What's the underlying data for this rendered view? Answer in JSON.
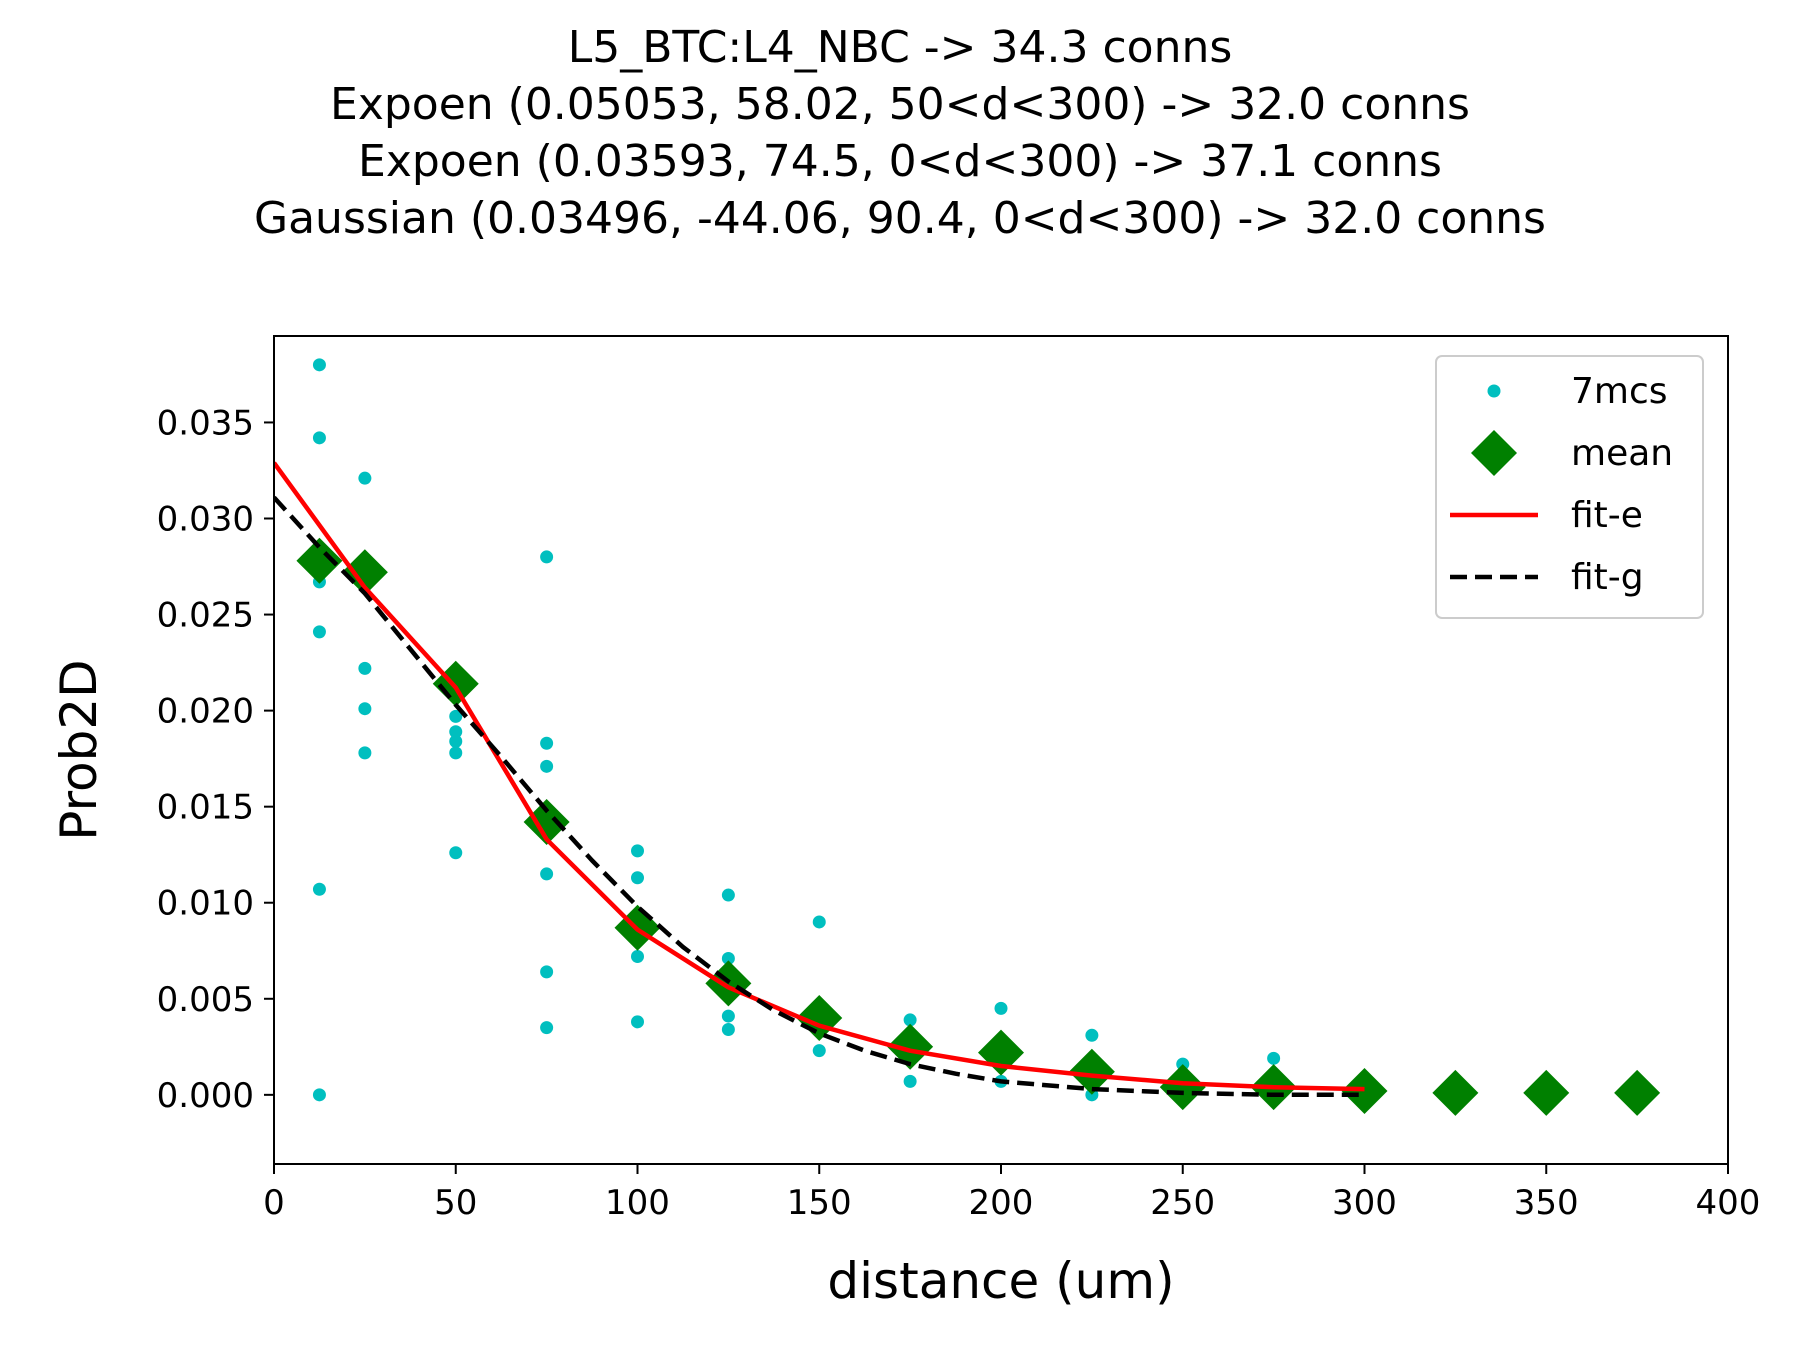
{
  "chart_data": {
    "type": "scatter",
    "title": [
      "L5_BTC:L4_NBC -> 34.3 conns",
      "Expoen (0.05053, 58.02, 50<d<300) -> 32.0 conns",
      "Expoen (0.03593, 74.5, 0<d<300) -> 37.1 conns",
      "Gaussian (0.03496, -44.06, 90.4, 0<d<300) -> 32.0 conns"
    ],
    "xlabel": "distance (um)",
    "ylabel": "Prob2D",
    "xlim": [
      0,
      400
    ],
    "ylim": [
      -0.0036,
      0.0395
    ],
    "xticks": [
      "0",
      "50",
      "100",
      "150",
      "200",
      "250",
      "300",
      "350",
      "400"
    ],
    "xtick_values": [
      0,
      50,
      100,
      150,
      200,
      250,
      300,
      350,
      400
    ],
    "yticks": [
      "0.000",
      "0.005",
      "0.010",
      "0.015",
      "0.020",
      "0.025",
      "0.030",
      "0.035"
    ],
    "ytick_values": [
      0,
      0.005,
      0.01,
      0.015,
      0.02,
      0.025,
      0.03,
      0.035
    ],
    "grid": false,
    "legend_position": "top-right",
    "series": [
      {
        "name": "7mcs",
        "type": "scatter",
        "color": "#00bfbf",
        "points": [
          [
            12.5,
            0.038
          ],
          [
            12.5,
            0.0342
          ],
          [
            12.5,
            0.0267
          ],
          [
            12.5,
            0.0241
          ],
          [
            12.5,
            0.0107
          ],
          [
            12.5,
            0.0
          ],
          [
            25,
            0.0321
          ],
          [
            25,
            0.0222
          ],
          [
            25,
            0.0201
          ],
          [
            25,
            0.0178
          ],
          [
            50,
            0.0197
          ],
          [
            50,
            0.0189
          ],
          [
            50,
            0.0184
          ],
          [
            50,
            0.0178
          ],
          [
            50,
            0.0126
          ],
          [
            75,
            0.028
          ],
          [
            75,
            0.0183
          ],
          [
            75,
            0.0171
          ],
          [
            75,
            0.0115
          ],
          [
            75,
            0.0064
          ],
          [
            75,
            0.0035
          ],
          [
            100,
            0.0127
          ],
          [
            100,
            0.0113
          ],
          [
            100,
            0.0072
          ],
          [
            100,
            0.0038
          ],
          [
            125,
            0.0104
          ],
          [
            125,
            0.0071
          ],
          [
            125,
            0.0041
          ],
          [
            125,
            0.0034
          ],
          [
            150,
            0.009
          ],
          [
            150,
            0.0023
          ],
          [
            175,
            0.0039
          ],
          [
            175,
            0.0007
          ],
          [
            200,
            0.0045
          ],
          [
            200,
            0.0007
          ],
          [
            225,
            0.0031
          ],
          [
            225,
            0.0
          ],
          [
            250,
            0.0016
          ],
          [
            275,
            0.0019
          ],
          [
            300,
            0.0009
          ]
        ]
      },
      {
        "name": "mean",
        "type": "scatter",
        "marker": "diamond",
        "color": "#008000",
        "points": [
          [
            12.5,
            0.0278
          ],
          [
            25,
            0.0272
          ],
          [
            50,
            0.0214
          ],
          [
            75,
            0.0142
          ],
          [
            100,
            0.0087
          ],
          [
            125,
            0.0058
          ],
          [
            150,
            0.004
          ],
          [
            175,
            0.0025
          ],
          [
            200,
            0.0022
          ],
          [
            225,
            0.0012
          ],
          [
            250,
            0.0004
          ],
          [
            275,
            0.0004
          ],
          [
            300,
            0.0002
          ],
          [
            325,
            0.0001
          ],
          [
            350,
            0.0001
          ],
          [
            375,
            0.0001
          ]
        ]
      },
      {
        "name": "fit-e",
        "type": "line",
        "color": "#ff0000",
        "dash": "solid",
        "points": [
          [
            0,
            0.0329
          ],
          [
            25,
            0.0264
          ],
          [
            50,
            0.0212
          ],
          [
            75,
            0.0133
          ],
          [
            100,
            0.0086
          ],
          [
            125,
            0.0056
          ],
          [
            150,
            0.0036
          ],
          [
            175,
            0.0023
          ],
          [
            200,
            0.0015
          ],
          [
            225,
            0.001
          ],
          [
            250,
            0.0006
          ],
          [
            275,
            0.0004
          ],
          [
            300,
            0.0003
          ]
        ]
      },
      {
        "name": "fit-g",
        "type": "line",
        "color": "#000000",
        "dash": "dashed",
        "points": [
          [
            0,
            0.0311
          ],
          [
            12.5,
            0.0285
          ],
          [
            25,
            0.0261
          ],
          [
            37.5,
            0.0232
          ],
          [
            50,
            0.0203
          ],
          [
            62.5,
            0.0176
          ],
          [
            75,
            0.0148
          ],
          [
            87.5,
            0.0122
          ],
          [
            100,
            0.0098
          ],
          [
            112.5,
            0.0077
          ],
          [
            125,
            0.0059
          ],
          [
            137.5,
            0.0044
          ],
          [
            150,
            0.0032
          ],
          [
            162.5,
            0.0023
          ],
          [
            175,
            0.0016
          ],
          [
            187.5,
            0.0011
          ],
          [
            200,
            0.0007
          ],
          [
            212.5,
            0.0005
          ],
          [
            225,
            0.0003
          ],
          [
            250,
            0.0001
          ],
          [
            275,
            0.0
          ],
          [
            300,
            0.0
          ]
        ]
      }
    ]
  }
}
